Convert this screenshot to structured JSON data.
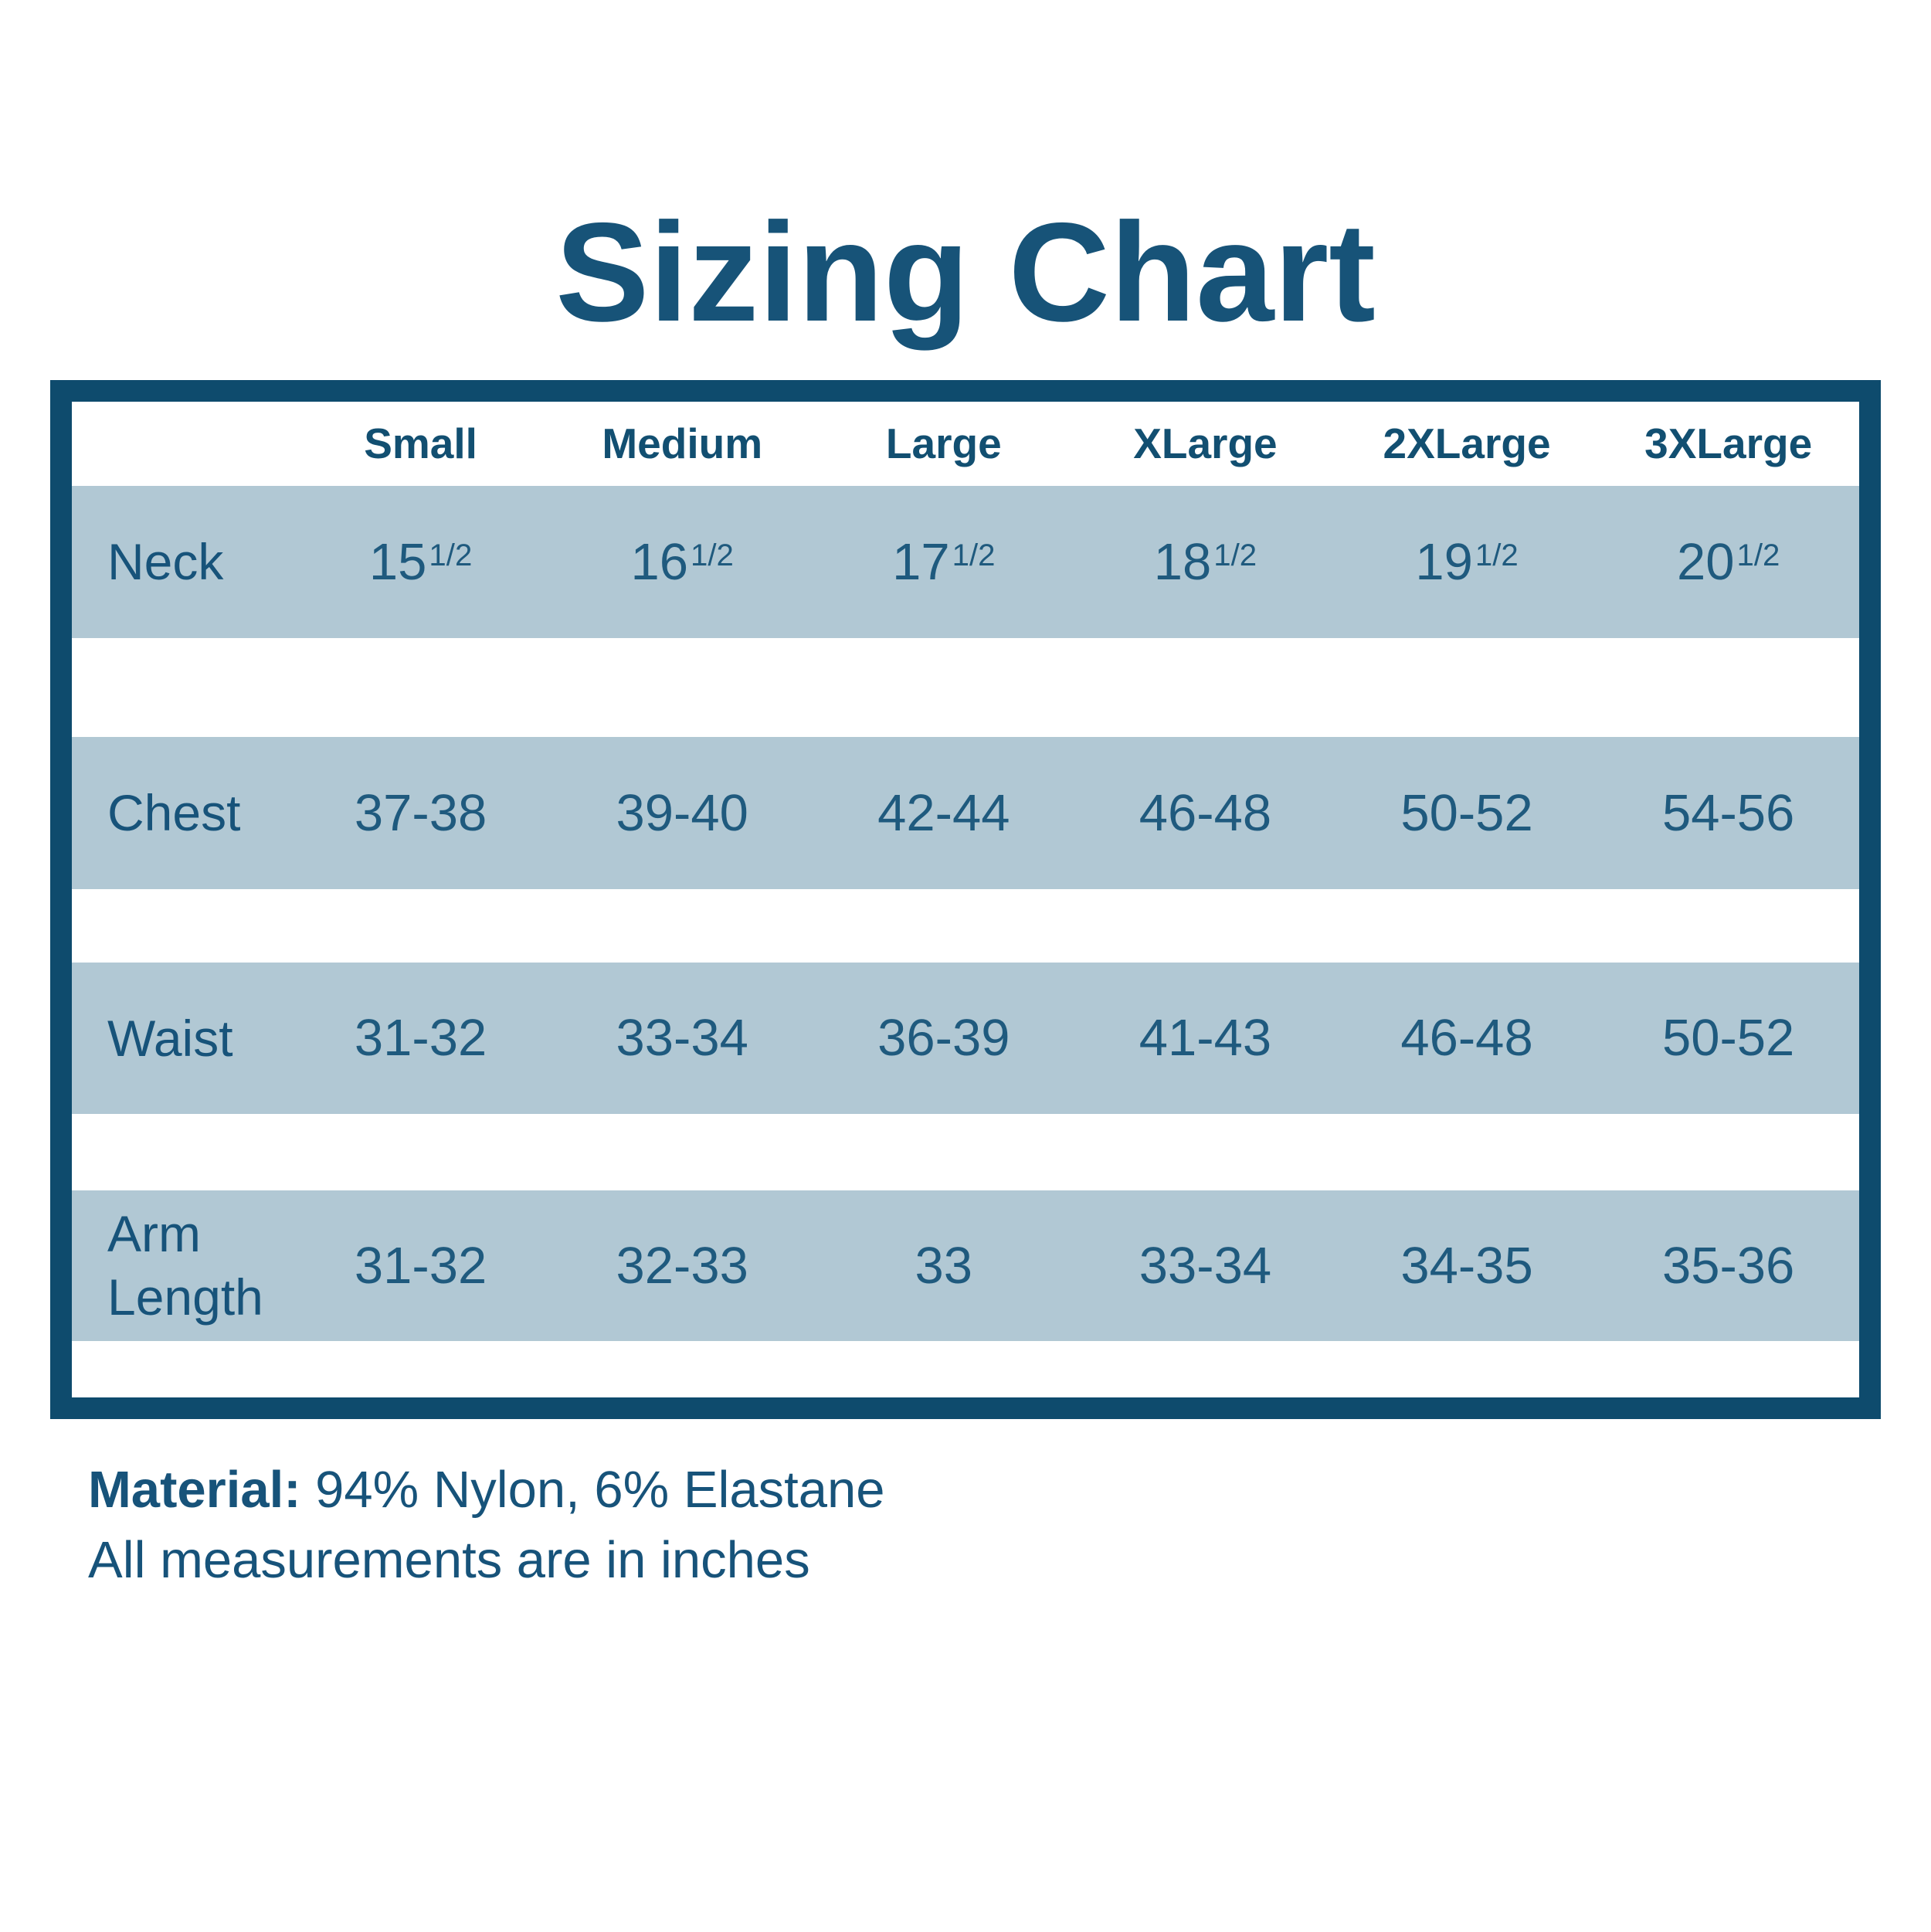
{
  "page": {
    "title": "Sizing Chart"
  },
  "colors": {
    "border_blue": "#0e4b6d",
    "header_text": "#124f71",
    "label_text": "#17537a",
    "data_text": "#1f5a7e",
    "row_band": "#b1c8d4",
    "background": "#ffffff"
  },
  "table": {
    "column_headers": [
      "Small",
      "Medium",
      "Large",
      "XLarge",
      "2XLarge",
      "3XLarge"
    ],
    "rows": [
      {
        "label": "Neck",
        "values": [
          {
            "whole": "15",
            "frac": "1/2"
          },
          {
            "whole": "16",
            "frac": "1/2"
          },
          {
            "whole": "17",
            "frac": "1/2"
          },
          {
            "whole": "18",
            "frac": "1/2"
          },
          {
            "whole": "19",
            "frac": "1/2"
          },
          {
            "whole": "20",
            "frac": "1/2"
          }
        ]
      },
      {
        "label": "Chest",
        "values": [
          "37-38",
          "39-40",
          "42-44",
          "46-48",
          "50-52",
          "54-56"
        ]
      },
      {
        "label": "Waist",
        "values": [
          "31-32",
          "33-34",
          "36-39",
          "41-43",
          "46-48",
          "50-52"
        ]
      },
      {
        "label": "Arm Length",
        "values": [
          "31-32",
          "32-33",
          "33",
          "33-34",
          "34-35",
          "35-36"
        ]
      }
    ]
  },
  "footer": {
    "material_label": "Material:",
    "material_value": " 94% Nylon, 6% Elastane",
    "note": "All measurements are in inches"
  },
  "chart_data": {
    "type": "table",
    "title": "Sizing Chart",
    "columns": [
      "",
      "Small",
      "Medium",
      "Large",
      "XLarge",
      "2XLarge",
      "3XLarge"
    ],
    "rows": [
      [
        "Neck",
        "15 1/2",
        "16 1/2",
        "17 1/2",
        "18 1/2",
        "19 1/2",
        "20 1/2"
      ],
      [
        "Chest",
        "37-38",
        "39-40",
        "42-44",
        "46-48",
        "50-52",
        "54-56"
      ],
      [
        "Waist",
        "31-32",
        "33-34",
        "36-39",
        "41-43",
        "46-48",
        "50-52"
      ],
      [
        "Arm Length",
        "31-32",
        "32-33",
        "33",
        "33-34",
        "34-35",
        "35-36"
      ]
    ],
    "notes": [
      "Material: 94% Nylon, 6% Elastane",
      "All measurements are in inches"
    ],
    "layout": {
      "data_row_background": "#b1c8d4",
      "spacer_rows_between_data": true,
      "outer_border": "#0e4b6d"
    }
  }
}
